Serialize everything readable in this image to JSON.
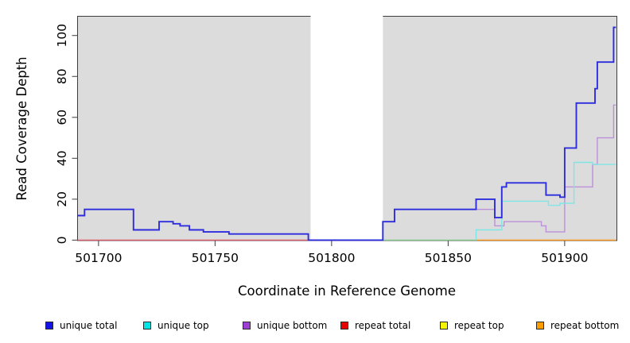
{
  "figure": {
    "x_axis_title": "Coordinate in Reference Genome",
    "y_axis_title": "Read Coverage Depth"
  },
  "chart_data": {
    "type": "line",
    "subtype": "step-coverage",
    "title": "",
    "xlabel": "Coordinate in Reference Genome",
    "ylabel": "Read Coverage Depth",
    "xlim": [
      501691,
      501922
    ],
    "ylim": [
      0,
      109
    ],
    "x_ticks": [
      501700,
      501750,
      501800,
      501850,
      501900
    ],
    "y_ticks": [
      0,
      20,
      40,
      60,
      80,
      100
    ],
    "grid": "off",
    "plot_background": "#dcdcdc",
    "masked_region": {
      "x_start": 501791,
      "x_end": 501822,
      "fill": "#ffffff",
      "note": "no-data gap band"
    },
    "baseline_segments": [
      {
        "name": "zero-line-left-repeat-total",
        "color": "#e05f6e",
        "x_start": 501691,
        "x_end": 501791,
        "value": 0
      },
      {
        "name": "zero-line-mid",
        "color": "#86c98a",
        "x_start": 501822,
        "x_end": 501862,
        "value": 0
      },
      {
        "name": "zero-line-right-repeat-bottom",
        "color": "#ff9718",
        "x_start": 501862,
        "x_end": 501922,
        "value": 0
      }
    ],
    "series": [
      {
        "name": "unique bottom",
        "color": "#bd90da",
        "width": 1.4,
        "steps": [
          [
            501822,
            0
          ],
          [
            501822,
            9
          ],
          [
            501827,
            15
          ],
          [
            501870,
            7
          ],
          [
            501874,
            9
          ],
          [
            501890,
            7
          ],
          [
            501892,
            4
          ],
          [
            501900,
            26
          ],
          [
            501912,
            37
          ],
          [
            501914,
            50
          ],
          [
            501921,
            66
          ],
          [
            501922,
            66
          ]
        ]
      },
      {
        "name": "unique top",
        "color": "#7fe6e6",
        "width": 1.4,
        "steps": [
          [
            501862,
            0
          ],
          [
            501862,
            5
          ],
          [
            501873,
            19
          ],
          [
            501893,
            17
          ],
          [
            501898,
            18
          ],
          [
            501904,
            38
          ],
          [
            501912,
            37
          ],
          [
            501922,
            37
          ]
        ]
      },
      {
        "name": "unique total",
        "color": "#2d2dde",
        "width": 1.9,
        "steps": [
          [
            501691,
            12
          ],
          [
            501694,
            15
          ],
          [
            501715,
            5
          ],
          [
            501726,
            9
          ],
          [
            501732,
            8
          ],
          [
            501735,
            7
          ],
          [
            501739,
            5
          ],
          [
            501745,
            4
          ],
          [
            501756,
            3
          ],
          [
            501790,
            0
          ],
          [
            501822,
            9
          ],
          [
            501827,
            15
          ],
          [
            501862,
            20
          ],
          [
            501870,
            11
          ],
          [
            501873,
            26
          ],
          [
            501875,
            28
          ],
          [
            501892,
            22
          ],
          [
            501898,
            21
          ],
          [
            501900,
            45
          ],
          [
            501905,
            67
          ],
          [
            501913,
            74
          ],
          [
            501914,
            87
          ],
          [
            501921,
            104
          ],
          [
            501922,
            104
          ]
        ]
      }
    ]
  },
  "legend": {
    "items": [
      {
        "label": "unique total",
        "color": "#1414e6"
      },
      {
        "label": "unique top",
        "color": "#00e5e5"
      },
      {
        "label": "unique bottom",
        "color": "#9d3fd3"
      },
      {
        "label": "repeat total",
        "color": "#e60000"
      },
      {
        "label": "repeat top",
        "color": "#f5f500"
      },
      {
        "label": "repeat bottom",
        "color": "#ff9d00"
      }
    ]
  }
}
